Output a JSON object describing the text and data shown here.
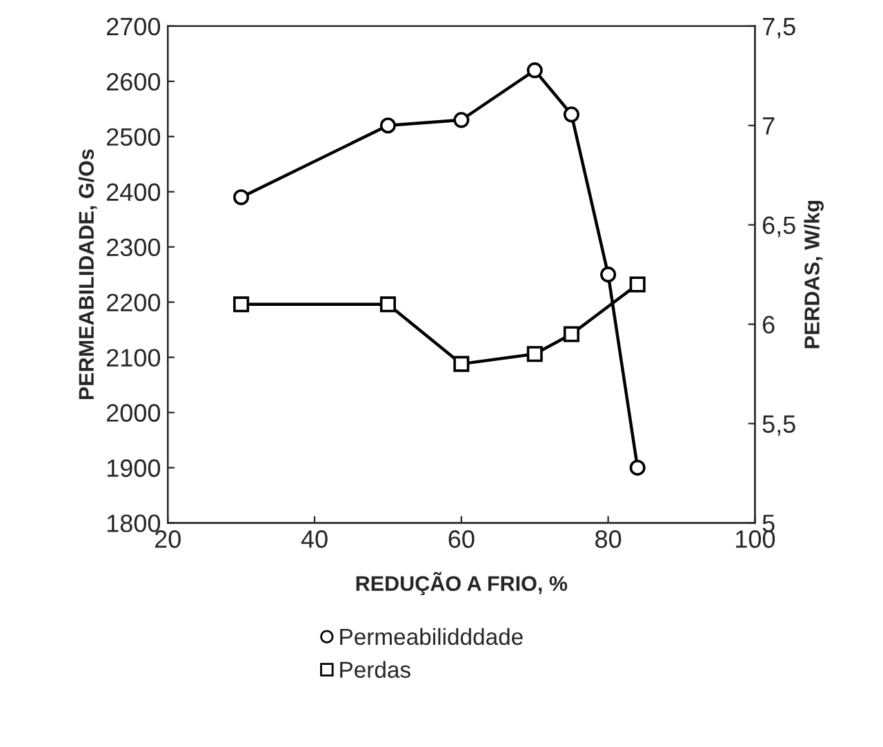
{
  "chart_data": {
    "type": "line",
    "xlabel": "REDUÇÃO A FRIO, %",
    "ylabel": "PERMEABILIDADE, G/Os",
    "y2label": "PERDAS, W/kg",
    "series": [
      {
        "name": "Permeabilidddade",
        "color": "#000000",
        "marker": "circle",
        "x": [
          30,
          50,
          60,
          70,
          75,
          80,
          84
        ],
        "values": [
          2390,
          2520,
          2530,
          2620,
          2540,
          2250,
          1900
        ]
      },
      {
        "name": "Perdas",
        "color": "#000000",
        "marker": "square",
        "axis": "y2",
        "x": [
          30,
          50,
          60,
          70,
          75,
          84
        ],
        "values": [
          6.1,
          6.1,
          5.8,
          5.85,
          5.95,
          6.2
        ]
      }
    ],
    "xlim": [
      20,
      100
    ],
    "xticks": [
      20,
      40,
      60,
      80,
      100
    ],
    "ylim": [
      1800,
      2700
    ],
    "yticks": [
      1800,
      1900,
      2000,
      2100,
      2200,
      2300,
      2400,
      2500,
      2600,
      2700
    ],
    "y2lim": [
      5,
      7.5
    ],
    "y2ticks": [
      5,
      {
        "value": 5.5,
        "label": "5,5"
      },
      6,
      {
        "value": 6.5,
        "label": "6,5"
      },
      7,
      {
        "value": 7.5,
        "label": "7,5"
      }
    ],
    "grid": false,
    "legend": "bottom",
    "line_style": "solid"
  }
}
